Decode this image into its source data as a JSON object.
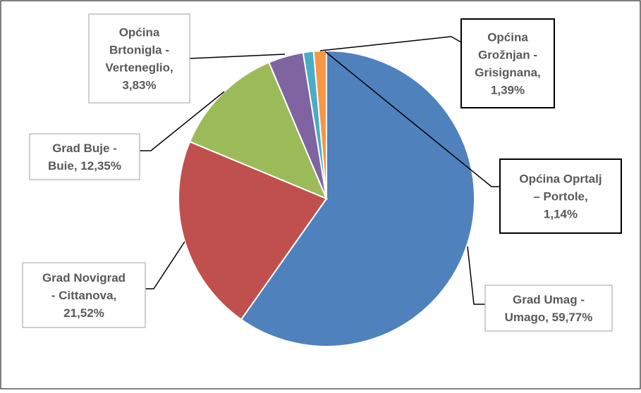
{
  "chart_data": {
    "type": "pie",
    "title": "",
    "start_angle_deg": 90,
    "direction": "clockwise",
    "slices": [
      {
        "label_lines": [
          "Grad Umag -",
          "Umago, 59,77%"
        ],
        "name": "Grad Umag - Umago",
        "value": 59.77,
        "color": "#4f81bd",
        "label_border": "light"
      },
      {
        "label_lines": [
          "Grad Novigrad",
          "- Cittanova,",
          "21,52%"
        ],
        "name": "Grad Novigrad - Cittanova",
        "value": 21.52,
        "color": "#c0504d",
        "label_border": "light"
      },
      {
        "label_lines": [
          "Grad Buje -",
          "Buie, 12,35%"
        ],
        "name": "Grad Buje - Buie",
        "value": 12.35,
        "color": "#9bbb59",
        "label_border": "light"
      },
      {
        "label_lines": [
          "Općina",
          "Brtonigla -",
          "Verteneglio,",
          "3,83%"
        ],
        "name": "Općina Brtonigla - Verteneglio",
        "value": 3.83,
        "color": "#8064a2",
        "label_border": "light"
      },
      {
        "label_lines": [
          "Općina Oprtalj",
          "– Portole,",
          "1,14%"
        ],
        "name": "Općina Oprtalj – Portole",
        "value": 1.14,
        "color": "#4bacc6",
        "label_border": "dark"
      },
      {
        "label_lines": [
          "Općina",
          "Grožnjan -",
          "Grisignana,",
          "1,39%"
        ],
        "name": "Općina Grožnjan - Grisignana",
        "value": 1.39,
        "color": "#f79646",
        "label_border": "dark"
      }
    ]
  }
}
